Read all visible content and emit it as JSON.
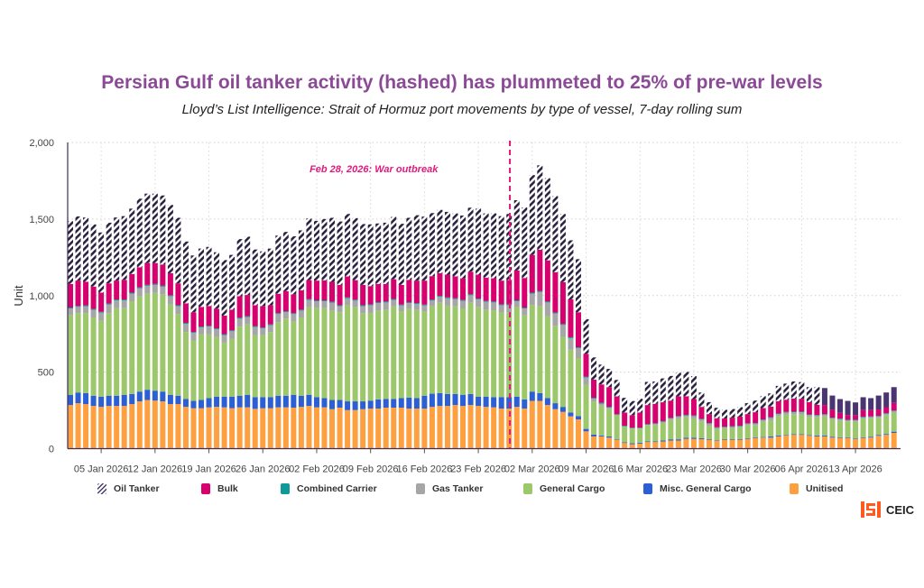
{
  "chart_data": {
    "type": "bar",
    "stacked": true,
    "title": "Persian Gulf oil tanker activity (hashed) has plummeted to 25% of pre-war levels",
    "subtitle": "Lloyd’s List Intelligence: Strait of Hormuz port movements by type of vessel, 7-day rolling sum",
    "xlabel": "",
    "ylabel": "Unit",
    "ylim": [
      0,
      2000
    ],
    "yticks": [
      0,
      500,
      1000,
      1500,
      2000
    ],
    "ytick_labels": [
      "0",
      "500",
      "1,000",
      "1,500",
      "2,000"
    ],
    "x_start_date": "2026-01-01",
    "x_frequency": "daily",
    "xticks": [
      {
        "day": 4,
        "label": "05 Jan 2026"
      },
      {
        "day": 11,
        "label": "12 Jan 2026"
      },
      {
        "day": 18,
        "label": "19 Jan 2026"
      },
      {
        "day": 25,
        "label": "26 Jan 2026"
      },
      {
        "day": 32,
        "label": "02 Feb 2026"
      },
      {
        "day": 39,
        "label": "09 Feb 2026"
      },
      {
        "day": 46,
        "label": "16 Feb 2026"
      },
      {
        "day": 53,
        "label": "23 Feb 2026"
      },
      {
        "day": 60,
        "label": "02 Mar 2026"
      },
      {
        "day": 67,
        "label": "09 Mar 2026"
      },
      {
        "day": 74,
        "label": "16 Mar 2026"
      },
      {
        "day": 81,
        "label": "23 Mar 2026"
      },
      {
        "day": 88,
        "label": "30 Mar 2026"
      },
      {
        "day": 95,
        "label": "06 Apr 2026"
      },
      {
        "day": 102,
        "label": "13 Apr 2026"
      }
    ],
    "grid": true,
    "legend_position": "bottom",
    "annotation": {
      "day": 58,
      "label": "Feb 28, 2026: War outbreak",
      "color": "#e0197d"
    },
    "oil_tanker_solid_from_day": 98,
    "series": [
      {
        "name": "Oil Tanker",
        "color": "#2b2240",
        "solid_color": "#4b3472",
        "hatched": true,
        "values": [
          410,
          419,
          420,
          406,
          393,
          396,
          412,
          416,
          427,
          448,
          453,
          453,
          451,
          446,
          428,
          404,
          371,
          381,
          386,
          369,
          363,
          358,
          373,
          381,
          364,
          357,
          370,
          380,
          387,
          379,
          391,
          403,
          390,
          400,
          418,
          414,
          408,
          405,
          397,
          403,
          395,
          400,
          407,
          399,
          405,
          427,
          418,
          412,
          414,
          410,
          412,
          410,
          418,
          431,
          420,
          424,
          421,
          432,
          459,
          461,
          521,
          552,
          537,
          498,
          445,
          386,
          347,
          227,
          145,
          129,
          119,
          107,
          96,
          92,
          90,
          151,
          146,
          156,
          161,
          154,
          160,
          150,
          94,
          78,
          68,
          57,
          56,
          62,
          71,
          76,
          78,
          86,
          100,
          105,
          111,
          109,
          98,
          115,
          111,
          93,
          90,
          93,
          83,
          84,
          78,
          91,
          96,
          103
        ]
      },
      {
        "name": "Bulk",
        "color": "#d6006f",
        "values": [
          154,
          166,
          155,
          147,
          125,
          133,
          123,
          128,
          122,
          132,
          143,
          137,
          139,
          144,
          143,
          127,
          129,
          129,
          129,
          129,
          121,
          135,
          141,
          139,
          136,
          141,
          125,
          127,
          131,
          123,
          127,
          124,
          129,
          131,
          131,
          133,
          137,
          128,
          133,
          119,
          119,
          115,
          129,
          129,
          146,
          147,
          157,
          154,
          148,
          149,
          143,
          142,
          148,
          157,
          152,
          152,
          155,
          158,
          195,
          193,
          247,
          270,
          269,
          263,
          274,
          247,
          229,
          148,
          119,
          121,
          129,
          117,
          86,
          82,
          99,
          125,
          127,
          123,
          113,
          129,
          121,
          107,
          78,
          58,
          59,
          53,
          57,
          59,
          60,
          70,
          74,
          70,
          80,
          80,
          86,
          84,
          80,
          67,
          59,
          51,
          37,
          30,
          30,
          43,
          41,
          41,
          39,
          49
        ]
      },
      {
        "name": "Combined Carrier",
        "color": "#0f9a9a",
        "values": [
          6,
          6,
          6,
          6,
          6,
          6,
          6,
          6,
          6,
          6,
          6,
          6,
          6,
          6,
          6,
          6,
          6,
          6,
          6,
          6,
          6,
          6,
          6,
          6,
          6,
          6,
          6,
          6,
          6,
          6,
          6,
          6,
          6,
          6,
          6,
          6,
          6,
          6,
          6,
          6,
          6,
          6,
          6,
          6,
          6,
          6,
          6,
          6,
          6,
          6,
          6,
          6,
          6,
          6,
          6,
          6,
          6,
          6,
          6,
          6,
          6,
          6,
          6,
          6,
          6,
          6,
          6,
          6,
          6,
          6,
          6,
          2,
          2,
          2,
          2,
          2,
          2,
          2,
          2,
          2,
          2,
          2,
          2,
          2,
          2,
          2,
          2,
          2,
          2,
          2,
          2,
          2,
          2,
          2,
          2,
          2,
          2,
          2,
          2,
          2,
          2,
          2,
          2,
          2,
          2,
          2,
          2,
          2
        ]
      },
      {
        "name": "Gas Tanker",
        "color": "#a6a6a6",
        "values": [
          43,
          41,
          44,
          49,
          52,
          56,
          51,
          51,
          50,
          51,
          52,
          52,
          52,
          55,
          52,
          54,
          49,
          45,
          51,
          49,
          47,
          48,
          52,
          47,
          55,
          45,
          44,
          53,
          42,
          49,
          45,
          47,
          45,
          45,
          51,
          40,
          47,
          43,
          46,
          50,
          49,
          47,
          42,
          37,
          37,
          39,
          39,
          37,
          39,
          48,
          46,
          49,
          49,
          48,
          51,
          51,
          48,
          46,
          39,
          45,
          74,
          93,
          90,
          80,
          78,
          76,
          64,
          49,
          17,
          12,
          9,
          2,
          3,
          4,
          4,
          4,
          10,
          10,
          10,
          16,
          12,
          20,
          15,
          16,
          9,
          9,
          9,
          9,
          12,
          12,
          13,
          18,
          15,
          14,
          14,
          16,
          15,
          13,
          13,
          8,
          14,
          9,
          11,
          10,
          10,
          12,
          11,
          12
        ]
      },
      {
        "name": "General Cargo",
        "color": "#9cc76a",
        "values": [
          521,
          518,
          522,
          511,
          496,
          539,
          572,
          566,
          606,
          623,
          627,
          639,
          633,
          589,
          533,
          438,
          395,
          428,
          416,
          390,
          355,
          379,
          451,
          460,
          404,
          404,
          426,
          480,
          504,
          478,
          511,
          572,
          582,
          588,
          584,
          573,
          626,
          615,
          576,
          573,
          580,
          584,
          606,
          568,
          580,
          576,
          550,
          571,
          590,
          577,
          573,
          564,
          596,
          586,
          568,
          568,
          553,
          555,
          584,
          549,
          566,
          567,
          535,
          506,
          457,
          410,
          379,
          287,
          217,
          195,
          178,
          160,
          104,
          96,
          92,
          107,
          107,
          115,
          128,
          134,
          135,
          123,
          110,
          88,
          74,
          71,
          73,
          77,
          84,
          80,
          100,
          105,
          127,
          134,
          132,
          130,
          119,
          119,
          125,
          115,
          107,
          104,
          110,
          123,
          121,
          111,
          123,
          125
        ]
      },
      {
        "name": "Misc. General Cargo",
        "color": "#2b5fd3",
        "values": [
          67,
          70,
          72,
          67,
          67,
          67,
          67,
          73,
          66,
          64,
          67,
          65,
          64,
          61,
          55,
          51,
          48,
          54,
          60,
          67,
          70,
          76,
          76,
          82,
          76,
          72,
          72,
          76,
          76,
          84,
          73,
          73,
          66,
          60,
          60,
          50,
          57,
          57,
          51,
          52,
          60,
          56,
          56,
          62,
          72,
          68,
          84,
          86,
          84,
          78,
          72,
          73,
          72,
          61,
          67,
          66,
          74,
          74,
          67,
          60,
          61,
          51,
          45,
          39,
          33,
          25,
          22,
          16,
          12,
          6,
          8,
          2,
          2,
          6,
          6,
          4,
          4,
          6,
          8,
          8,
          8,
          8,
          6,
          3,
          4,
          3,
          3,
          3,
          4,
          4,
          4,
          8,
          6,
          4,
          4,
          4,
          4,
          6,
          6,
          6,
          4,
          4,
          4,
          4,
          6,
          6,
          6,
          8
        ]
      },
      {
        "name": "Unitised",
        "color": "#ffa040",
        "values": [
          285,
          297,
          291,
          279,
          273,
          279,
          279,
          279,
          291,
          309,
          318,
          314,
          309,
          291,
          291,
          273,
          264,
          264,
          270,
          273,
          270,
          264,
          270,
          270,
          260,
          264,
          264,
          270,
          270,
          268,
          273,
          279,
          270,
          270,
          258,
          268,
          252,
          252,
          258,
          262,
          262,
          268,
          268,
          268,
          262,
          262,
          262,
          273,
          279,
          279,
          285,
          279,
          285,
          279,
          273,
          270,
          262,
          262,
          273,
          262,
          312,
          312,
          285,
          258,
          240,
          211,
          191,
          113,
          80,
          80,
          72,
          59,
          39,
          29,
          33,
          43,
          43,
          47,
          53,
          53,
          64,
          64,
          62,
          59,
          51,
          59,
          59,
          59,
          64,
          70,
          72,
          72,
          80,
          86,
          90,
          90,
          84,
          80,
          80,
          72,
          70,
          70,
          62,
          70,
          72,
          84,
          90,
          103
        ]
      }
    ]
  },
  "brand": {
    "logo_text": "CEIC",
    "color": "#ff5a1f"
  }
}
